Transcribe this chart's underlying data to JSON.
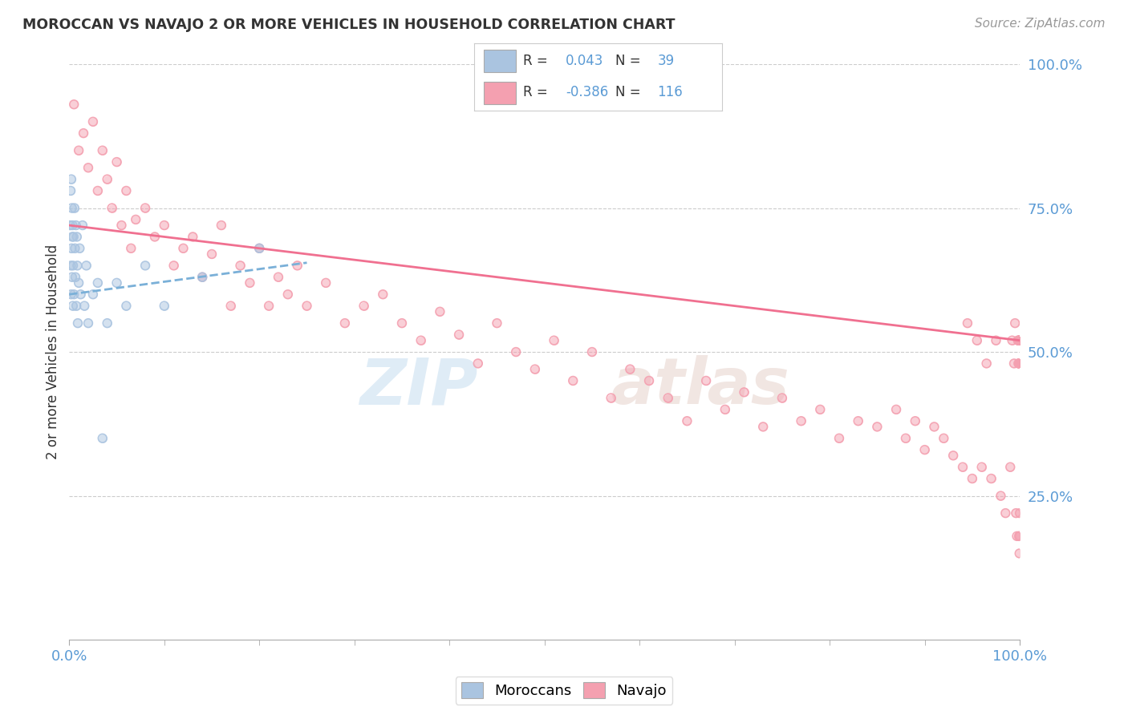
{
  "title": "MOROCCAN VS NAVAJO 2 OR MORE VEHICLES IN HOUSEHOLD CORRELATION CHART",
  "source": "Source: ZipAtlas.com",
  "ylabel": "2 or more Vehicles in Household",
  "moroccan_color": "#aac4e0",
  "navajo_color": "#f4a0b0",
  "moroccan_line_color": "#7ab0d8",
  "navajo_line_color": "#f07090",
  "background_color": "#ffffff",
  "grid_color": "#cccccc",
  "tick_color": "#5b9bd5",
  "title_color": "#333333",
  "source_color": "#999999",
  "moroccan_R": 0.043,
  "navajo_R": -0.386,
  "moroccan_N": 39,
  "navajo_N": 116,
  "xlim": [
    0,
    100
  ],
  "ylim": [
    0,
    100
  ],
  "yticks": [
    25,
    50,
    75,
    100
  ],
  "ytick_labels": [
    "25.0%",
    "50.0%",
    "75.0%",
    "100.0%"
  ],
  "moroccan_x": [
    0.1,
    0.15,
    0.18,
    0.2,
    0.22,
    0.25,
    0.28,
    0.3,
    0.32,
    0.35,
    0.38,
    0.4,
    0.45,
    0.5,
    0.55,
    0.6,
    0.65,
    0.7,
    0.75,
    0.8,
    0.85,
    0.9,
    1.0,
    1.1,
    1.2,
    1.4,
    1.6,
    1.8,
    2.0,
    2.5,
    3.0,
    3.5,
    4.0,
    5.0,
    6.0,
    8.0,
    10.0,
    14.0,
    20.0
  ],
  "moroccan_y": [
    72,
    78,
    65,
    60,
    80,
    68,
    75,
    63,
    70,
    72,
    58,
    65,
    70,
    60,
    75,
    68,
    63,
    72,
    58,
    70,
    65,
    55,
    62,
    68,
    60,
    72,
    58,
    65,
    55,
    60,
    62,
    35,
    55,
    62,
    58,
    65,
    58,
    63,
    68
  ],
  "navajo_x": [
    0.5,
    1.0,
    1.5,
    2.0,
    2.5,
    3.0,
    3.5,
    4.0,
    4.5,
    5.0,
    5.5,
    6.0,
    6.5,
    7.0,
    8.0,
    9.0,
    10.0,
    11.0,
    12.0,
    13.0,
    14.0,
    15.0,
    16.0,
    17.0,
    18.0,
    19.0,
    20.0,
    21.0,
    22.0,
    23.0,
    24.0,
    25.0,
    27.0,
    29.0,
    31.0,
    33.0,
    35.0,
    37.0,
    39.0,
    41.0,
    43.0,
    45.0,
    47.0,
    49.0,
    51.0,
    53.0,
    55.0,
    57.0,
    59.0,
    61.0,
    63.0,
    65.0,
    67.0,
    69.0,
    71.0,
    73.0,
    75.0,
    77.0,
    79.0,
    81.0,
    83.0,
    85.0,
    87.0,
    88.0,
    89.0,
    90.0,
    91.0,
    92.0,
    93.0,
    94.0,
    94.5,
    95.0,
    95.5,
    96.0,
    96.5,
    97.0,
    97.5,
    98.0,
    98.5,
    99.0,
    99.2,
    99.4,
    99.5,
    99.6,
    99.7,
    99.8,
    99.85,
    99.9,
    99.92,
    99.95,
    99.97,
    99.98,
    99.99,
    100.0,
    100.0,
    100.0,
    100.0,
    100.0,
    100.0,
    100.0,
    100.0,
    100.0,
    100.0,
    100.0,
    100.0,
    100.0,
    100.0,
    100.0,
    100.0,
    100.0,
    100.0,
    100.0,
    100.0,
    100.0,
    100.0,
    100.0
  ],
  "navajo_y": [
    93,
    85,
    88,
    82,
    90,
    78,
    85,
    80,
    75,
    83,
    72,
    78,
    68,
    73,
    75,
    70,
    72,
    65,
    68,
    70,
    63,
    67,
    72,
    58,
    65,
    62,
    68,
    58,
    63,
    60,
    65,
    58,
    62,
    55,
    58,
    60,
    55,
    52,
    57,
    53,
    48,
    55,
    50,
    47,
    52,
    45,
    50,
    42,
    47,
    45,
    42,
    38,
    45,
    40,
    43,
    37,
    42,
    38,
    40,
    35,
    38,
    37,
    40,
    35,
    38,
    33,
    37,
    35,
    32,
    30,
    55,
    28,
    52,
    30,
    48,
    28,
    52,
    25,
    22,
    30,
    52,
    48,
    55,
    22,
    18,
    52,
    48,
    52,
    18,
    52,
    15,
    48,
    52,
    48,
    52,
    48,
    52,
    52,
    48,
    52,
    48,
    52,
    22,
    48,
    52,
    48,
    52,
    48,
    52,
    48,
    52,
    48,
    18,
    52,
    48,
    52
  ]
}
